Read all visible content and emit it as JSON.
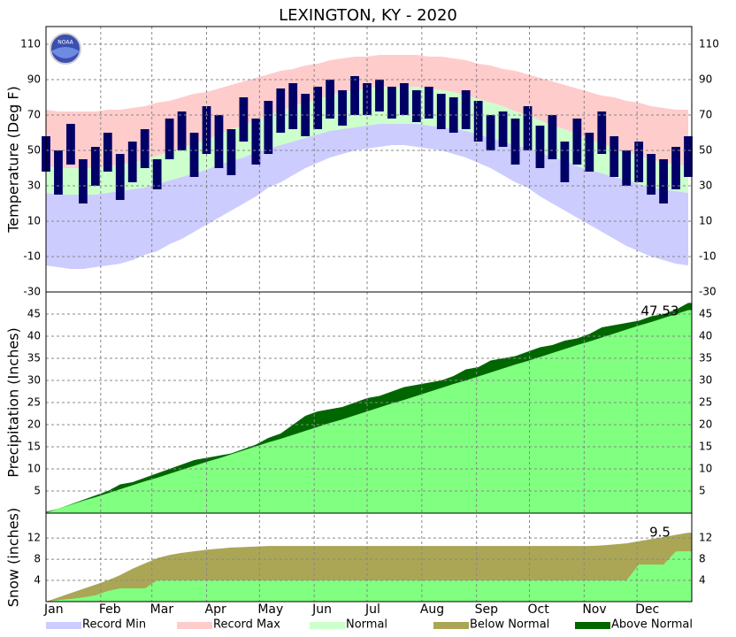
{
  "title": "LEXINGTON, KY - 2020",
  "logo_text": "NOAA",
  "legend": [
    {
      "name": "Record Min",
      "color": "#ccccff"
    },
    {
      "name": "Record Max",
      "color": "#ffcccc"
    },
    {
      "name": "Normal",
      "color": "#ccffcc"
    },
    {
      "name": "Below Normal",
      "color": "#aaa655"
    },
    {
      "name": "Above Normal",
      "color": "#006600"
    }
  ],
  "chart_data": [
    {
      "type": "range",
      "ylabel": "Temperature (Deg F)",
      "ylim": [
        -30,
        120
      ],
      "yticks": [
        -30,
        -10,
        10,
        30,
        50,
        70,
        90,
        110
      ],
      "grid": true,
      "xlim": [
        1,
        367
      ],
      "x": [
        1,
        8,
        15,
        22,
        29,
        36,
        43,
        50,
        57,
        64,
        71,
        78,
        85,
        92,
        99,
        106,
        113,
        120,
        127,
        134,
        141,
        148,
        155,
        162,
        169,
        176,
        183,
        190,
        197,
        204,
        211,
        218,
        225,
        232,
        239,
        246,
        253,
        260,
        267,
        274,
        281,
        288,
        295,
        302,
        309,
        316,
        323,
        330,
        337,
        344,
        351,
        358,
        365
      ],
      "series": [
        {
          "color": "#ffcccc",
          "values": [
            73,
            72,
            72,
            72,
            72,
            73,
            73,
            74,
            75,
            77,
            78,
            80,
            82,
            83,
            85,
            87,
            89,
            91,
            93,
            95,
            96,
            98,
            99,
            101,
            102,
            103,
            103,
            104,
            104,
            104,
            104,
            103,
            103,
            102,
            101,
            99,
            98,
            96,
            95,
            93,
            91,
            89,
            87,
            85,
            83,
            81,
            80,
            78,
            77,
            75,
            74,
            73,
            73
          ]
        },
        {
          "color": "#ccffcc",
          "values": [
            41,
            40,
            40,
            40,
            40,
            41,
            42,
            43,
            45,
            47,
            49,
            51,
            54,
            56,
            59,
            62,
            64,
            67,
            70,
            72,
            75,
            77,
            79,
            81,
            83,
            84,
            85,
            86,
            86,
            86,
            86,
            85,
            84,
            83,
            81,
            79,
            77,
            75,
            72,
            70,
            67,
            64,
            62,
            59,
            56,
            54,
            51,
            49,
            47,
            45,
            43,
            42,
            41
          ]
        },
        {
          "values": [
            26,
            25,
            25,
            25,
            25,
            26,
            27,
            28,
            29,
            31,
            33,
            35,
            37,
            39,
            42,
            44,
            46,
            49,
            51,
            53,
            55,
            57,
            59,
            61,
            62,
            63,
            64,
            65,
            65,
            65,
            65,
            64,
            63,
            62,
            61,
            59,
            57,
            55,
            53,
            51,
            49,
            46,
            44,
            41,
            39,
            37,
            35,
            33,
            31,
            29,
            28,
            27,
            26
          ]
        },
        {
          "color": "#ccccff",
          "values": [
            -15,
            -16,
            -17,
            -17,
            -16,
            -15,
            -14,
            -12,
            -9,
            -7,
            -3,
            0,
            4,
            8,
            12,
            16,
            20,
            24,
            29,
            32,
            36,
            40,
            43,
            46,
            48,
            50,
            51,
            52,
            53,
            53,
            52,
            51,
            50,
            48,
            46,
            43,
            40,
            36,
            32,
            29,
            24,
            20,
            16,
            12,
            8,
            4,
            0,
            -4,
            -7,
            -10,
            -12,
            -14,
            -15
          ]
        },
        {
          "color": "#000066",
          "values": [
            58,
            50,
            65,
            45,
            52,
            60,
            48,
            55,
            62,
            45,
            68,
            72,
            60,
            75,
            70,
            62,
            80,
            68,
            78,
            85,
            88,
            82,
            86,
            90,
            84,
            92,
            88,
            90,
            86,
            88,
            84,
            86,
            82,
            80,
            84,
            78,
            70,
            72,
            68,
            75,
            64,
            70,
            55,
            68,
            60,
            72,
            58,
            50,
            55,
            48,
            45,
            52,
            58
          ],
          "lows": [
            38,
            25,
            42,
            20,
            30,
            38,
            22,
            32,
            40,
            28,
            45,
            50,
            35,
            48,
            40,
            36,
            55,
            42,
            48,
            60,
            62,
            58,
            62,
            68,
            64,
            70,
            70,
            72,
            68,
            70,
            66,
            68,
            62,
            60,
            62,
            55,
            50,
            52,
            42,
            50,
            40,
            45,
            32,
            42,
            38,
            48,
            35,
            30,
            32,
            25,
            20,
            28,
            35
          ]
        }
      ]
    },
    {
      "type": "area",
      "ylabel": "Precipitation (Inches)",
      "ylim": [
        0,
        50
      ],
      "yticks": [
        5,
        10,
        15,
        20,
        25,
        30,
        35,
        40,
        45
      ],
      "grid": true,
      "annotation": "47.53",
      "series": [
        {
          "color": "#006600",
          "values": [
            0.3,
            1,
            2,
            3,
            4,
            5,
            6.5,
            7,
            8,
            9,
            10,
            11,
            12,
            12.5,
            13,
            13.5,
            14.5,
            15.5,
            17,
            18,
            20,
            22,
            23,
            23.5,
            24,
            25,
            26,
            26.5,
            27.5,
            28.5,
            29,
            29.5,
            30,
            31,
            32.5,
            33,
            34.5,
            35,
            35.5,
            36.5,
            37.5,
            38,
            39,
            39.5,
            40.5,
            42,
            42.5,
            43,
            43.5,
            44.5,
            45,
            46,
            47.53
          ]
        },
        {
          "color": "#80ff80",
          "values": [
            0.1,
            1,
            1.9,
            2.8,
            3.6,
            4.5,
            5.4,
            6.3,
            7.2,
            8,
            8.9,
            9.8,
            10.7,
            11.6,
            12.4,
            13.3,
            14.2,
            15.1,
            16,
            16.8,
            17.7,
            18.6,
            19.5,
            20.4,
            21.2,
            22.1,
            23,
            23.9,
            24.8,
            25.6,
            26.5,
            27.4,
            28.3,
            29.2,
            30,
            30.9,
            31.8,
            32.7,
            33.6,
            34.4,
            35.3,
            36.2,
            37.1,
            38,
            38.8,
            39.7,
            40.6,
            41.5,
            42.4,
            43.2,
            44.1,
            45,
            45.9
          ]
        }
      ]
    },
    {
      "type": "area",
      "ylabel": "Snow (inches)",
      "ylim": [
        0,
        16.7
      ],
      "yticks": [
        4,
        8,
        12
      ],
      "grid": true,
      "annotation": "9.5",
      "xticks": [
        {
          "value": 1,
          "label": "Jan"
        },
        {
          "value": 32,
          "label": "Feb"
        },
        {
          "value": 61,
          "label": "Mar"
        },
        {
          "value": 92,
          "label": "Apr"
        },
        {
          "value": 122,
          "label": "May"
        },
        {
          "value": 153,
          "label": "Jun"
        },
        {
          "value": 183,
          "label": "Jul"
        },
        {
          "value": 214,
          "label": "Aug"
        },
        {
          "value": 245,
          "label": "Sep"
        },
        {
          "value": 275,
          "label": "Oct"
        },
        {
          "value": 306,
          "label": "Nov"
        },
        {
          "value": 336,
          "label": "Dec"
        }
      ],
      "series": [
        {
          "color": "#aaa655",
          "values": [
            0,
            0.8,
            1.6,
            2.4,
            3.2,
            4,
            5,
            6.2,
            7.2,
            8.2,
            8.8,
            9.2,
            9.5,
            9.8,
            10,
            10.2,
            10.3,
            10.4,
            10.5,
            10.5,
            10.5,
            10.5,
            10.5,
            10.5,
            10.5,
            10.5,
            10.5,
            10.5,
            10.5,
            10.5,
            10.5,
            10.5,
            10.5,
            10.5,
            10.5,
            10.5,
            10.5,
            10.5,
            10.5,
            10.5,
            10.5,
            10.5,
            10.5,
            10.5,
            10.5,
            10.6,
            10.8,
            11,
            11.4,
            11.8,
            12.2,
            12.6,
            13
          ]
        },
        {
          "color": "#80ff80",
          "values": [
            0,
            0.3,
            0.5,
            0.8,
            1.2,
            2,
            2.5,
            2.5,
            2.5,
            4,
            4,
            4,
            4,
            4,
            4,
            4,
            4,
            4,
            4,
            4,
            4,
            4,
            4,
            4,
            4,
            4,
            4,
            4,
            4,
            4,
            4,
            4,
            4,
            4,
            4,
            4,
            4,
            4,
            4,
            4,
            4,
            4,
            4,
            4,
            4,
            4,
            4,
            4,
            7,
            7,
            7,
            9.5,
            9.5
          ]
        }
      ]
    }
  ]
}
